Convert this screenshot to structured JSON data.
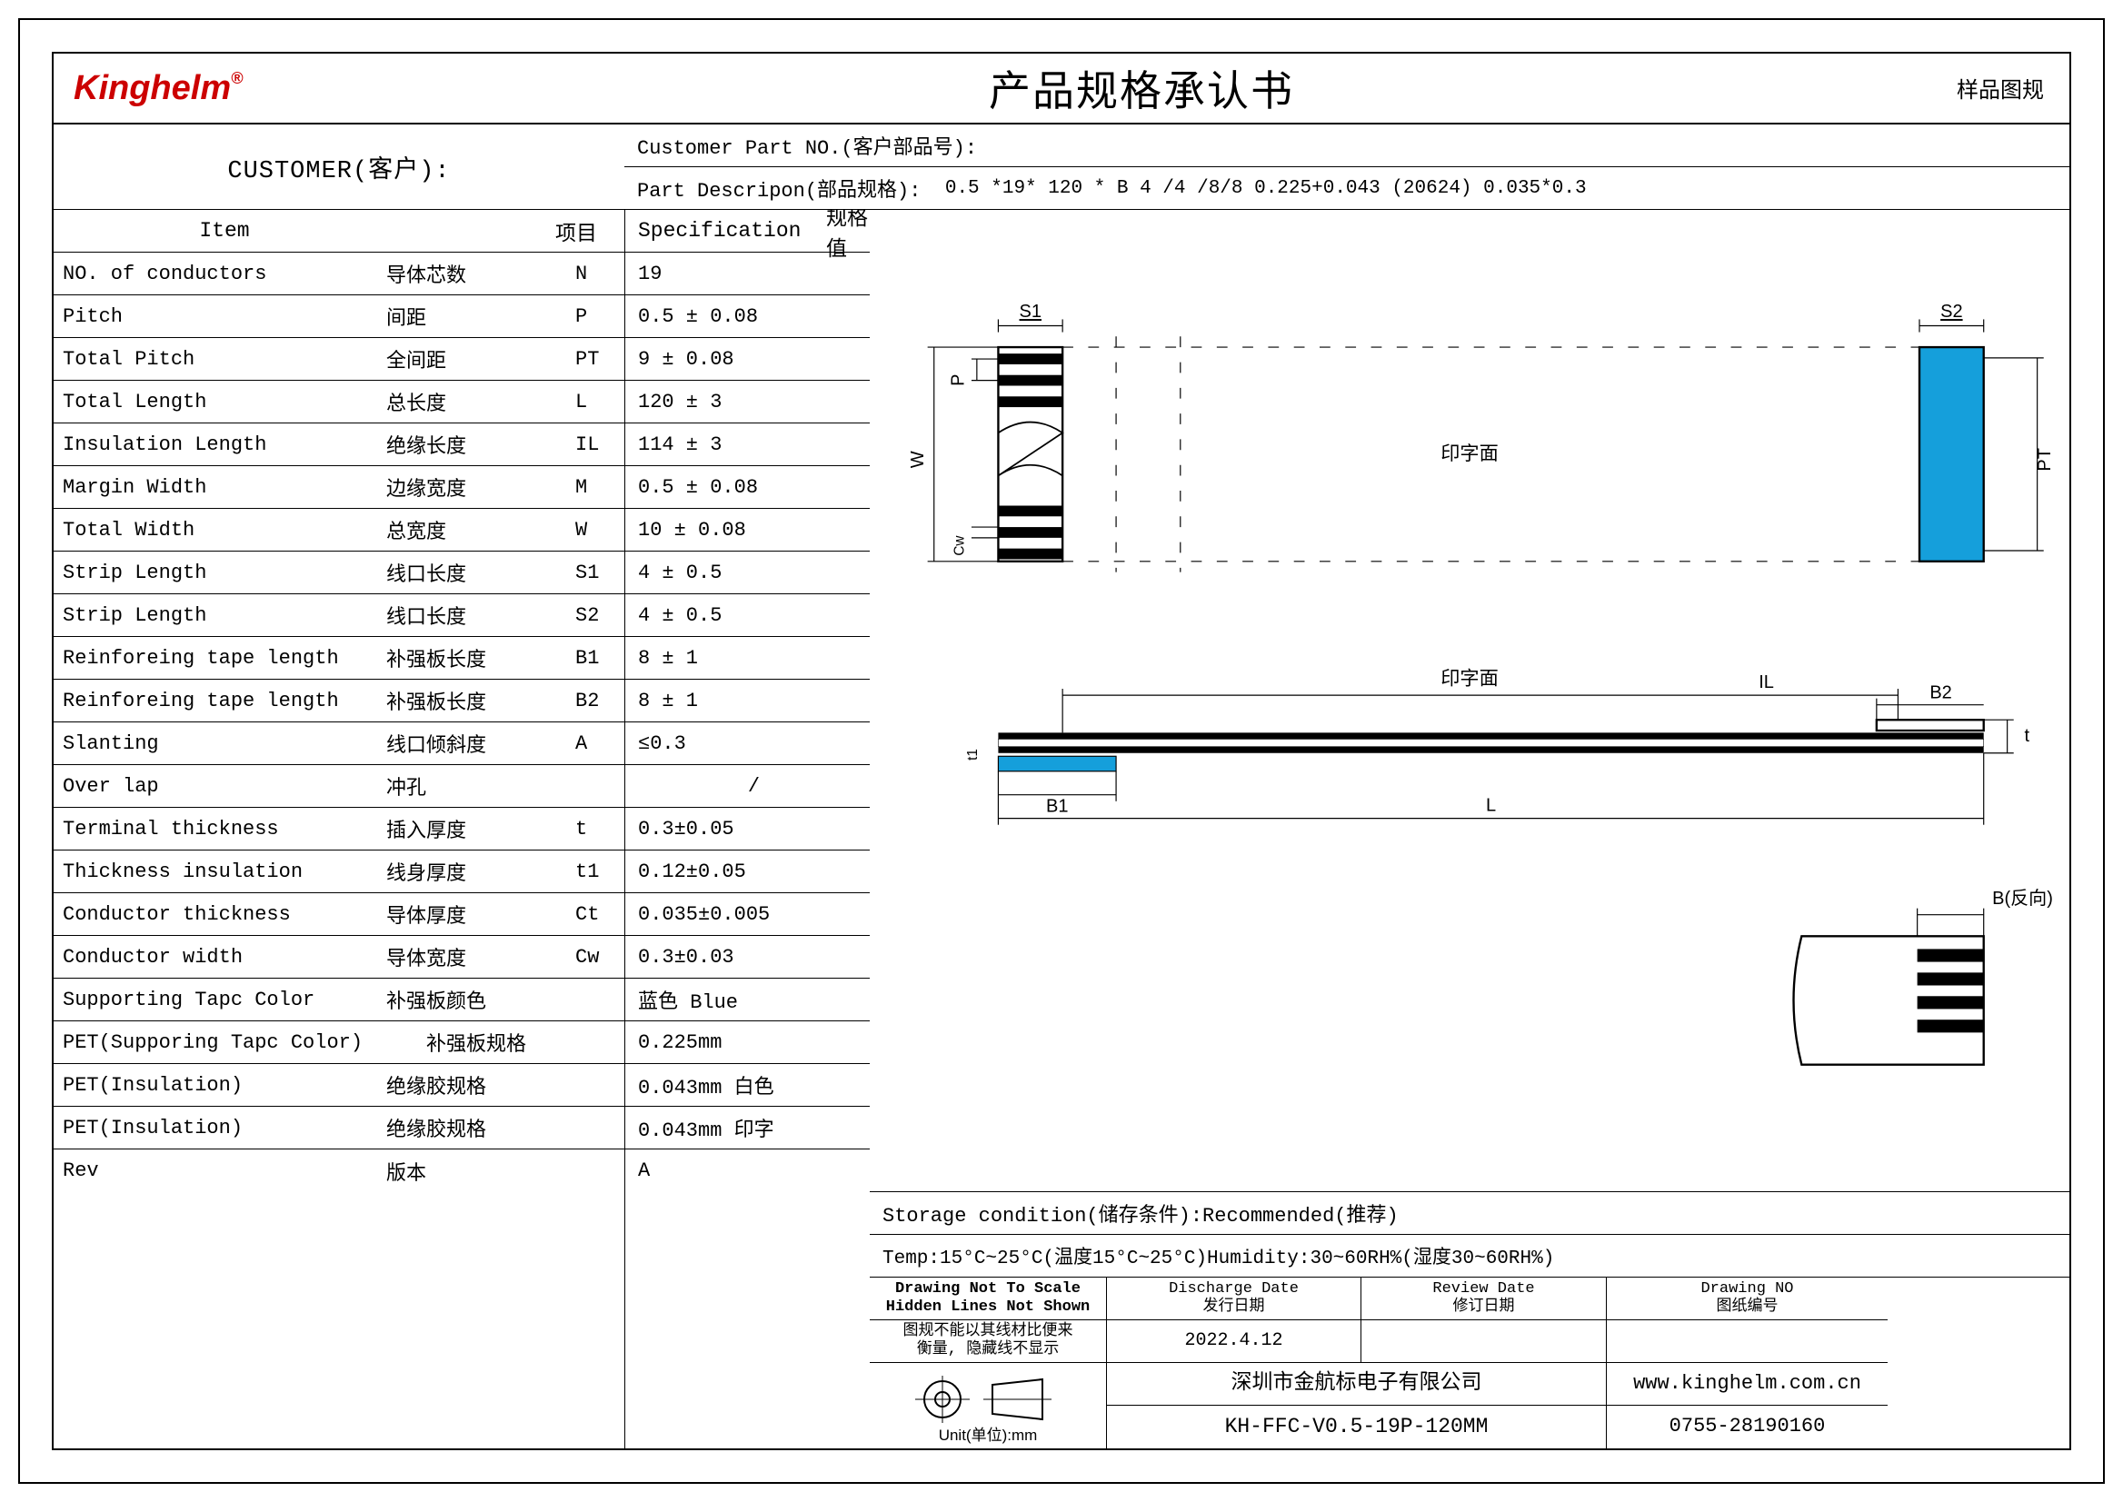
{
  "header": {
    "logo_text": "Kinghelm",
    "logo_reg": "®",
    "title": "产品规格承认书",
    "right_label": "样品图规"
  },
  "customer": {
    "label": "CUSTOMER(客户):",
    "part_no_label": "Customer Part NO.(客户部品号):",
    "part_desc_label": "Part Descripon(部品规格):",
    "part_desc_value": "0.5 *19* 120 * B 4 /4 /8/8 0.225+0.043 (20624) 0.035*0.3"
  },
  "table_header": {
    "item_en": "Item",
    "item_cn": "项目",
    "spec_en": "Specification",
    "spec_cn": "规格值"
  },
  "items": [
    {
      "en": "NO. of conductors",
      "cn": "导体芯数",
      "sym": "N",
      "spec": "19"
    },
    {
      "en": "Pitch",
      "cn": "间距",
      "sym": "P",
      "spec": "0.5 ± 0.08"
    },
    {
      "en": "Total Pitch",
      "cn": "全间距",
      "sym": "PT",
      "spec": " 9 ± 0.08"
    },
    {
      "en": "Total Length",
      "cn": "总长度",
      "sym": "L",
      "spec": "120 ± 3"
    },
    {
      "en": "Insulation Length",
      "cn": "绝缘长度",
      "sym": "IL",
      "spec": "114 ± 3"
    },
    {
      "en": "Margin Width",
      "cn": "边缘宽度",
      "sym": "M",
      "spec": "0.5 ± 0.08"
    },
    {
      "en": "Total Width",
      "cn": "总宽度",
      "sym": "W",
      "spec": "10 ± 0.08"
    },
    {
      "en": "Strip Length",
      "cn": "线口长度",
      "sym": "S1",
      "spec": "4 ± 0.5"
    },
    {
      "en": "Strip Length",
      "cn": "线口长度",
      "sym": "S2",
      "spec": "4 ± 0.5"
    },
    {
      "en": "Reinforeing tape length",
      "cn": "补强板长度",
      "sym": "B1",
      "spec": "8 ± 1"
    },
    {
      "en": "Reinforeing tape length",
      "cn": "补强板长度",
      "sym": "B2",
      "spec": "8 ± 1"
    },
    {
      "en": "Slanting",
      "cn": "线口倾斜度",
      "sym": "A",
      "spec": "≤0.3"
    },
    {
      "en": "Over lap",
      "cn": "冲孔",
      "sym": "",
      "spec": "/",
      "spec_center": true
    },
    {
      "en": "Terminal thickness",
      "cn": "插入厚度",
      "sym": "t",
      "spec": "0.3±0.05"
    },
    {
      "en": "Thickness insulation",
      "cn": "线身厚度",
      "sym": "t1",
      "spec": "0.12±0.05"
    },
    {
      "en": "Conductor thickness",
      "cn": "导体厚度",
      "sym": "Ct",
      "spec": "0.035±0.005"
    },
    {
      "en": "Conductor width",
      "cn": "导体宽度",
      "sym": "Cw",
      "spec": "0.3±0.03"
    },
    {
      "en": "Supporting Tapc Color",
      "cn": "补强板颜色",
      "sym": "",
      "spec": "蓝色 Blue"
    },
    {
      "en": "PET(Supporing Tapc Color)",
      "cn": "补强板规格",
      "sym": "",
      "spec": "0.225mm",
      "wide": true
    },
    {
      "en": "PET(Insulation)",
      "cn": "绝缘胶规格",
      "sym": "",
      "spec": "0.043mm 白色"
    },
    {
      "en": "PET(Insulation)",
      "cn": "绝缘胶规格",
      "sym": "",
      "spec": "0.043mm 印字"
    },
    {
      "en": "Rev",
      "cn": "版本",
      "sym": "",
      "spec": "A"
    }
  ],
  "storage": {
    "line1": "Storage condition(储存条件):Recommended(推荐)",
    "line2": "Temp:15°C~25°C(温度15°C~25°C)Humidity:30~60RH%(湿度30~60RH%)"
  },
  "footer": {
    "draw_note_en1": "Drawing Not To Scale",
    "draw_note_en2": "Hidden Lines Not Shown",
    "draw_note_cn1": "图规不能以其线材比便来",
    "draw_note_cn2": "衡量, 隐藏线不显示",
    "unit_label": "Unit(单位):mm",
    "discharge_en": "Discharge Date",
    "discharge_cn": "发行日期",
    "discharge_val": "2022.4.12",
    "review_en": "Review Date",
    "review_cn": "修订日期",
    "drawing_en": "Drawing NO",
    "drawing_cn": "图纸编号",
    "company": "深圳市金航标电子有限公司",
    "url": "www.kinghelm.com.cn",
    "part": "KH-FFC-V0.5-19P-120MM",
    "phone": "0755-28190160"
  },
  "diagram_labels": {
    "S1": "S1",
    "S2": "S2",
    "W": "W",
    "P": "P",
    "Cw": "Cw",
    "PT": "PT",
    "print": "印字面",
    "IL": "IL",
    "L": "L",
    "B1": "B1",
    "B2": "B2",
    "t": "t",
    "t1": "t1",
    "B_rev": "B(反向)"
  },
  "colors": {
    "accent_blue": "#159fdb",
    "logo_red": "#cc0000",
    "black": "#000000"
  }
}
